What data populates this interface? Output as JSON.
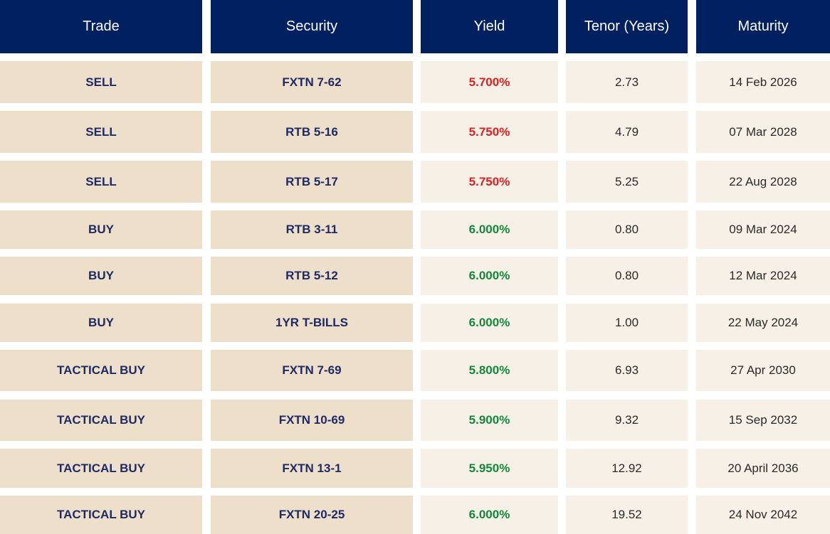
{
  "headers": {
    "trade": "Trade",
    "security": "Security",
    "yield": "Yield",
    "tenor": "Tenor (Years)",
    "maturity": "Maturity"
  },
  "colors": {
    "header_bg": "#00205f",
    "sell_yield": "#e02020",
    "buy_yield": "#12883a"
  },
  "rows": [
    {
      "trade": "SELL",
      "security": "FXTN 7-62",
      "yield": "5.700%",
      "tenor": "2.73",
      "maturity": "14 Feb 2026",
      "side": "sell"
    },
    {
      "trade": "SELL",
      "security": "RTB 5-16",
      "yield": "5.750%",
      "tenor": "4.79",
      "maturity": "07 Mar 2028",
      "side": "sell"
    },
    {
      "trade": "SELL",
      "security": "RTB 5-17",
      "yield": "5.750%",
      "tenor": "5.25",
      "maturity": "22 Aug 2028",
      "side": "sell"
    },
    {
      "trade": "BUY",
      "security": "RTB 3-11",
      "yield": "6.000%",
      "tenor": "0.80",
      "maturity": "09 Mar 2024",
      "side": "buy"
    },
    {
      "trade": "BUY",
      "security": "RTB 5-12",
      "yield": "6.000%",
      "tenor": "0.80",
      "maturity": "12 Mar 2024",
      "side": "buy"
    },
    {
      "trade": "BUY",
      "security": "1YR T-BILLS",
      "yield": "6.000%",
      "tenor": "1.00",
      "maturity": "22 May 2024",
      "side": "buy"
    },
    {
      "trade": "TACTICAL BUY",
      "security": "FXTN 7-69",
      "yield": "5.800%",
      "tenor": "6.93",
      "maturity": "27 Apr 2030",
      "side": "buy"
    },
    {
      "trade": "TACTICAL BUY",
      "security": "FXTN 10-69",
      "yield": "5.900%",
      "tenor": "9.32",
      "maturity": "15 Sep 2032",
      "side": "buy"
    },
    {
      "trade": "TACTICAL BUY",
      "security": "FXTN 13-1",
      "yield": "5.950%",
      "tenor": "12.92",
      "maturity": "20 April 2036",
      "side": "buy"
    },
    {
      "trade": "TACTICAL BUY",
      "security": "FXTN 20-25",
      "yield": "6.000%",
      "tenor": "19.52",
      "maturity": "24 Nov 2042",
      "side": "buy"
    }
  ]
}
